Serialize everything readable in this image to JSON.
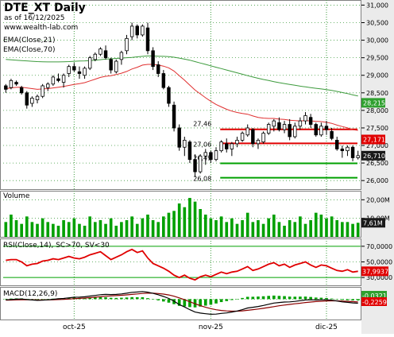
{
  "chart_data": [
    {
      "type": "candlestick",
      "title": "DTE_XT Daily",
      "subtitle_line1": "as of 16/12/2025",
      "subtitle_line2": "www.wealth-lab.com",
      "indicator_labels": [
        "EMA(Close,21)",
        "EMA(Close,70)"
      ],
      "ylim": [
        25800,
        31100
      ],
      "y_ticks": [
        26000,
        26500,
        27000,
        27500,
        28000,
        28500,
        29000,
        29500,
        30000,
        30500,
        31000
      ],
      "y_tick_labels": [
        "26,000",
        "26,500",
        "27,000",
        "27,500",
        "28,000",
        "28,500",
        "29,000",
        "29,500",
        "30,000",
        "30,500",
        "31,000"
      ],
      "x_labels": [
        "oct-25",
        "nov-25",
        "dic-25"
      ],
      "ohlc": [
        [
          28700,
          28750,
          28500,
          28600
        ],
        [
          28650,
          28900,
          28600,
          28850
        ],
        [
          28800,
          28850,
          28700,
          28750
        ],
        [
          28650,
          28700,
          28450,
          28500
        ],
        [
          28500,
          28550,
          28050,
          28150
        ],
        [
          28200,
          28400,
          28100,
          28350
        ],
        [
          28300,
          28450,
          28200,
          28400
        ],
        [
          28400,
          28750,
          28350,
          28700
        ],
        [
          28650,
          28800,
          28550,
          28750
        ],
        [
          28750,
          29000,
          28700,
          28950
        ],
        [
          28900,
          29050,
          28800,
          28850
        ],
        [
          28800,
          29050,
          28650,
          29000
        ],
        [
          29050,
          29300,
          28950,
          29250
        ],
        [
          29250,
          29350,
          29100,
          29150
        ],
        [
          29100,
          29250,
          28900,
          29050
        ],
        [
          29000,
          29250,
          28900,
          29200
        ],
        [
          29200,
          29550,
          29150,
          29500
        ],
        [
          29450,
          29650,
          29400,
          29600
        ],
        [
          29600,
          29800,
          29550,
          29750
        ],
        [
          29700,
          29850,
          29450,
          29500
        ],
        [
          29450,
          29500,
          29050,
          29150
        ],
        [
          29100,
          29450,
          29050,
          29400
        ],
        [
          29450,
          29700,
          29300,
          29650
        ],
        [
          29700,
          30150,
          29600,
          30050
        ],
        [
          30100,
          30500,
          30000,
          30400
        ],
        [
          30400,
          30450,
          30050,
          30150
        ],
        [
          30150,
          30450,
          30100,
          30400
        ],
        [
          30350,
          30500,
          29600,
          29700
        ],
        [
          29700,
          29800,
          29150,
          29250
        ],
        [
          29300,
          29400,
          28950,
          29050
        ],
        [
          29050,
          29150,
          28600,
          28650
        ],
        [
          28650,
          28700,
          28100,
          28200
        ],
        [
          28150,
          28250,
          27400,
          27500
        ],
        [
          27500,
          27600,
          26850,
          26950
        ],
        [
          26950,
          27250,
          26700,
          27150
        ],
        [
          27100,
          27150,
          26500,
          26600
        ],
        [
          26600,
          26750,
          26100,
          26250
        ],
        [
          26250,
          26750,
          26200,
          26700
        ],
        [
          26700,
          26900,
          26450,
          26800
        ],
        [
          26800,
          26850,
          26500,
          26600
        ],
        [
          26600,
          26950,
          26550,
          26850
        ],
        [
          26850,
          27150,
          26800,
          27100
        ],
        [
          27050,
          27200,
          26800,
          26900
        ],
        [
          26900,
          27100,
          26700,
          27050
        ],
        [
          27050,
          27250,
          26950,
          27150
        ],
        [
          27150,
          27400,
          27100,
          27350
        ],
        [
          27300,
          27600,
          27250,
          27500
        ],
        [
          27450,
          27500,
          26950,
          27050
        ],
        [
          27050,
          27200,
          26900,
          27150
        ],
        [
          27100,
          27400,
          27050,
          27350
        ],
        [
          27350,
          27650,
          27300,
          27600
        ],
        [
          27550,
          27750,
          27400,
          27700
        ],
        [
          27650,
          27800,
          27400,
          27450
        ],
        [
          27450,
          27700,
          27350,
          27600
        ],
        [
          27600,
          27750,
          27150,
          27250
        ],
        [
          27250,
          27650,
          27200,
          27550
        ],
        [
          27550,
          27800,
          27450,
          27700
        ],
        [
          27700,
          27950,
          27600,
          27850
        ],
        [
          27800,
          27900,
          27500,
          27600
        ],
        [
          27600,
          27650,
          27250,
          27300
        ],
        [
          27300,
          27650,
          27250,
          27550
        ],
        [
          27550,
          27700,
          27300,
          27450
        ],
        [
          27400,
          27500,
          27150,
          27200
        ],
        [
          27150,
          27250,
          26850,
          26900
        ],
        [
          26900,
          27000,
          26650,
          26850
        ],
        [
          26850,
          27000,
          26700,
          26950
        ],
        [
          26950,
          27000,
          26550,
          26650
        ],
        [
          26650,
          26850,
          26600,
          26710
        ]
      ],
      "ema21": [
        28620,
        28640,
        28655,
        28660,
        28640,
        28620,
        28600,
        28610,
        28620,
        28640,
        28660,
        28680,
        28710,
        28740,
        28760,
        28790,
        28840,
        28890,
        28940,
        28970,
        28990,
        29020,
        29060,
        29110,
        29180,
        29230,
        29290,
        29310,
        29310,
        29290,
        29260,
        29210,
        29120,
        28990,
        28860,
        28720,
        28580,
        28470,
        28360,
        28260,
        28170,
        28100,
        28030,
        27980,
        27940,
        27910,
        27890,
        27840,
        27800,
        27780,
        27770,
        27770,
        27750,
        27740,
        27720,
        27710,
        27700,
        27710,
        27700,
        27690,
        27680,
        27660,
        27630,
        27580,
        27540,
        27500,
        27450,
        27430
      ],
      "ema70": [
        29450,
        29440,
        29430,
        29420,
        29410,
        29400,
        29390,
        29385,
        29380,
        29380,
        29380,
        29385,
        29390,
        29400,
        29405,
        29410,
        29420,
        29430,
        29445,
        29460,
        29470,
        29480,
        29490,
        29500,
        29510,
        29525,
        29540,
        29550,
        29550,
        29545,
        29540,
        29530,
        29515,
        29490,
        29460,
        29430,
        29390,
        29350,
        29310,
        29270,
        29230,
        29190,
        29150,
        29110,
        29070,
        29030,
        28990,
        28950,
        28915,
        28880,
        28850,
        28820,
        28790,
        28765,
        28740,
        28715,
        28690,
        28670,
        28650,
        28630,
        28610,
        28590,
        28570,
        28540,
        28510,
        28480,
        28440,
        28410
      ],
      "hlines": [
        {
          "value": 27460,
          "label": "27,46",
          "color": "#e00000"
        },
        {
          "value": 27060,
          "label": "27,06",
          "color": "#e00000"
        },
        {
          "value": 26490,
          "label": "26,49",
          "color": "#00a000"
        },
        {
          "value": 26080,
          "label": "26,08",
          "color": "#00a000"
        }
      ],
      "right_tags": [
        {
          "value": 28215,
          "label": "28,215",
          "bg": "#2fa02f",
          "fg": "#ffffff"
        },
        {
          "value": 27171,
          "label": "27,171",
          "bg": "#e00000",
          "fg": "#ffffff"
        },
        {
          "value": 26710,
          "label": "26,710",
          "bg": "#1a1a1a",
          "fg": "#ffffff"
        }
      ],
      "colors": {
        "up_body": "#ffffff",
        "down_body": "#000000",
        "ema21": "#e03030",
        "ema70": "#3d9b3d",
        "tick_panel": "#ebebeb"
      }
    },
    {
      "type": "bar",
      "label": "Volume",
      "ylim": [
        0,
        24000000
      ],
      "y_ticks": [
        10000000,
        20000000
      ],
      "y_tick_labels": [
        "10,00M",
        "20,00M"
      ],
      "values": [
        8,
        12,
        9,
        7,
        11,
        8,
        7,
        10,
        8,
        7,
        6,
        9,
        8,
        10,
        7,
        6,
        11,
        8,
        9,
        7,
        10,
        6,
        8,
        9,
        11,
        7,
        10,
        12,
        9,
        8,
        11,
        13,
        14,
        18,
        16,
        21,
        19,
        15,
        12,
        10,
        9,
        11,
        8,
        10,
        7,
        9,
        13,
        8,
        9,
        7,
        10,
        12,
        8,
        6,
        9,
        8,
        11,
        7,
        9,
        13,
        12,
        10,
        11,
        9,
        8,
        8,
        7,
        7.6
      ],
      "value_unit": "M",
      "last_value_label": "7,61M",
      "bar_color": "#00a000"
    },
    {
      "type": "line",
      "label": "RSI(Close,14), SC>70, SV<30",
      "ylim": [
        20,
        80
      ],
      "y_ticks": [
        30,
        50,
        70
      ],
      "y_tick_labels": [
        "30,0000",
        "50,0000",
        "70,0000"
      ],
      "values": [
        52,
        53,
        53,
        50,
        45,
        47,
        48,
        51,
        52,
        54,
        53,
        55,
        57,
        55,
        54,
        56,
        59,
        61,
        63,
        58,
        53,
        56,
        59,
        63,
        66,
        62,
        64,
        55,
        48,
        45,
        42,
        38,
        33,
        30,
        33,
        29,
        27,
        31,
        33,
        31,
        34,
        37,
        35,
        37,
        38,
        41,
        44,
        39,
        41,
        44,
        47,
        49,
        45,
        47,
        43,
        46,
        48,
        50,
        46,
        43,
        46,
        45,
        42,
        39,
        38,
        40,
        37,
        38
      ],
      "last_value_label": "37,9937",
      "line_color": "#e00000"
    },
    {
      "type": "line",
      "label": "MACD(12,26,9)",
      "ylim": [
        -600,
        360
      ],
      "series": [
        {
          "name": "MACD",
          "values": [
            -20,
            -10,
            0,
            5,
            -10,
            -25,
            -35,
            -30,
            -20,
            -5,
            10,
            20,
            40,
            55,
            60,
            70,
            90,
            110,
            130,
            140,
            135,
            140,
            155,
            175,
            200,
            210,
            225,
            205,
            170,
            130,
            80,
            20,
            -60,
            -160,
            -230,
            -310,
            -380,
            -410,
            -430,
            -445,
            -440,
            -420,
            -405,
            -380,
            -350,
            -310,
            -260,
            -240,
            -215,
            -185,
            -150,
            -115,
            -100,
            -85,
            -80,
            -65,
            -45,
            -25,
            -20,
            -25,
            -20,
            -20,
            -30,
            -55,
            -80,
            -95,
            -110,
            -120
          ]
        },
        {
          "name": "Signal",
          "values": [
            -30,
            -27,
            -22,
            -17,
            -16,
            -18,
            -21,
            -23,
            -22,
            -19,
            -13,
            -7,
            2,
            13,
            22,
            32,
            43,
            57,
            71,
            85,
            95,
            104,
            114,
            127,
            141,
            155,
            169,
            176,
            175,
            166,
            149,
            123,
            87,
            37,
            -17,
            -76,
            -137,
            -191,
            -239,
            -280,
            -312,
            -334,
            -348,
            -354,
            -353,
            -345,
            -328,
            -310,
            -291,
            -270,
            -246,
            -220,
            -196,
            -174,
            -155,
            -137,
            -119,
            -100,
            -84,
            -72,
            -62,
            -53,
            -49,
            -50,
            -56,
            -64,
            -73,
            -82
          ]
        }
      ],
      "tag_labels": [
        "-0,0321",
        "-0,2259"
      ],
      "colors": {
        "macd": "#000000",
        "signal": "#8b0000",
        "hist": "#00a000"
      }
    }
  ]
}
